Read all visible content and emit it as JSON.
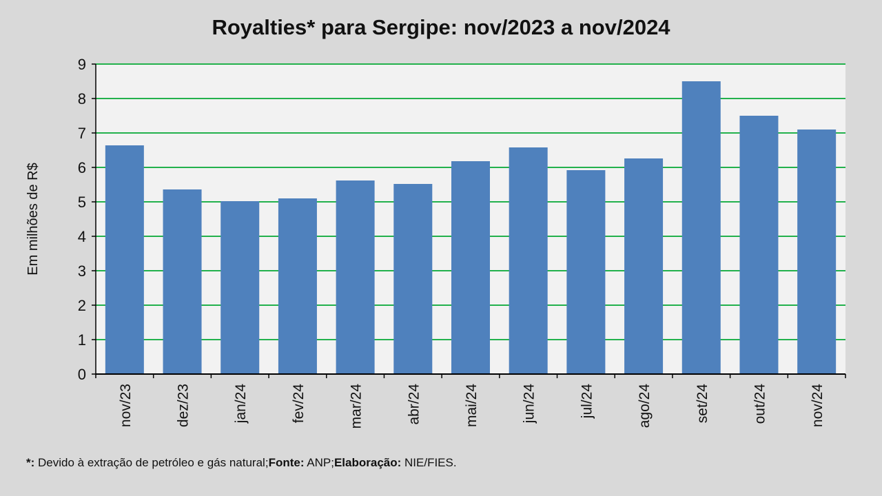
{
  "chart_data": {
    "type": "bar",
    "title": "Royalties* para Sergipe: nov/2023 a nov/2024",
    "xlabel": "",
    "ylabel": "Em milhões de R$",
    "ylim": [
      0,
      9
    ],
    "yticks": [
      0,
      1,
      2,
      3,
      4,
      5,
      6,
      7,
      8,
      9
    ],
    "grid": true,
    "categories": [
      "nov/23",
      "dez/23",
      "jan/24",
      "fev/24",
      "mar/24",
      "abr/24",
      "mai/24",
      "jun/24",
      "jul/24",
      "ago/24",
      "set/24",
      "out/24",
      "nov/24"
    ],
    "values": [
      6.64,
      5.36,
      5.02,
      5.1,
      5.62,
      5.52,
      6.18,
      6.58,
      5.92,
      6.26,
      8.5,
      7.5,
      7.1
    ],
    "colors": {
      "bar": "#4f81bd",
      "grid": "#22b14c",
      "plot_bg": "#f2f2f2"
    }
  },
  "footer": {
    "star_label": "*:",
    "star_text": " Devido à extração de petróleo e gás natural;",
    "source_label": "Fonte:",
    "source_text": " ANP;",
    "credit_label": "Elaboração:",
    "credit_text": " NIE/FIES."
  }
}
